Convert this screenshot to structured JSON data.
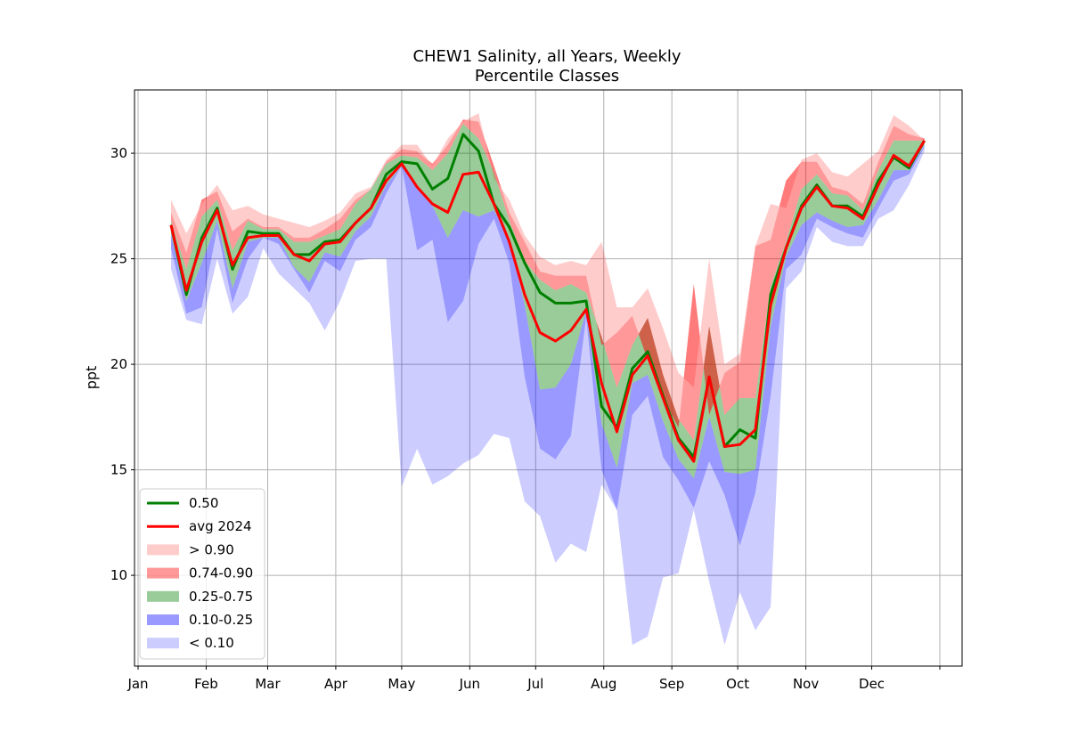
{
  "chart_data": {
    "type": "area",
    "title": "CHEW1 Salinity, all Years, Weekly",
    "subtitle": "Percentile Classes",
    "xlabel": "",
    "ylabel": "ppt",
    "xlim": [
      0,
      365
    ],
    "ylim": [
      5.7,
      33.0
    ],
    "yticks": [
      10,
      15,
      20,
      25,
      30
    ],
    "x_ticks": [
      {
        "label": "Jan",
        "day": 0
      },
      {
        "label": "Feb",
        "day": 31
      },
      {
        "label": "Mar",
        "day": 59
      },
      {
        "label": "Apr",
        "day": 90
      },
      {
        "label": "May",
        "day": 120
      },
      {
        "label": "Jun",
        "day": 151
      },
      {
        "label": "Jul",
        "day": 181
      },
      {
        "label": "Aug",
        "day": 212
      },
      {
        "label": "Sep",
        "day": 243
      },
      {
        "label": "Oct",
        "day": 273
      },
      {
        "label": "Nov",
        "day": 304
      },
      {
        "label": "Dec",
        "day": 334
      },
      {
        "label": "",
        "day": 365
      }
    ],
    "grid": true,
    "legend_position": "lower-left",
    "x": [
      15,
      22,
      29,
      36,
      43,
      50,
      57,
      64,
      71,
      78,
      85,
      92,
      99,
      106,
      113,
      120,
      127,
      134,
      141,
      148,
      155,
      162,
      169,
      176,
      183,
      190,
      197,
      204,
      211,
      218,
      225,
      232,
      239,
      246,
      253,
      260,
      267,
      274,
      281,
      288,
      295,
      302,
      309,
      316,
      323,
      330,
      337,
      344,
      351,
      358
    ],
    "percentiles": {
      "p00": [
        24.5,
        22.1,
        21.9,
        25.0,
        22.4,
        23.2,
        25.5,
        24.3,
        23.6,
        22.9,
        21.6,
        23.0,
        24.9,
        25.0,
        25.0,
        14.2,
        16.0,
        14.3,
        14.7,
        15.3,
        15.7,
        16.7,
        16.5,
        13.5,
        12.8,
        10.6,
        11.5,
        11.1,
        14.3,
        13.1,
        6.7,
        7.1,
        9.9,
        10.1,
        13.1,
        9.7,
        6.7,
        9.2,
        7.4,
        8.5,
        23.6,
        24.4,
        26.5,
        25.8,
        25.6,
        25.6,
        26.9,
        27.3,
        28.5,
        30.1
      ],
      "p10": [
        25.5,
        22.4,
        22.7,
        26.4,
        22.9,
        25.0,
        26.0,
        25.7,
        24.5,
        23.4,
        24.9,
        24.4,
        25.9,
        26.5,
        28.1,
        29.4,
        25.4,
        25.9,
        22.0,
        23.0,
        25.7,
        26.9,
        24.8,
        19.4,
        16.0,
        15.5,
        16.6,
        22.2,
        15.0,
        13.1,
        17.6,
        18.5,
        15.6,
        14.5,
        13.2,
        15.4,
        13.8,
        11.4,
        13.9,
        18.5,
        24.5,
        25.2,
        26.9,
        26.5,
        26.2,
        26.0,
        27.4,
        28.7,
        29.0,
        30.3
      ],
      "p25": [
        26.2,
        23.0,
        24.8,
        26.8,
        23.6,
        25.8,
        26.0,
        26.0,
        24.6,
        23.9,
        25.3,
        25.1,
        26.3,
        27.0,
        28.5,
        29.4,
        28.4,
        27.5,
        26.0,
        27.3,
        27.0,
        27.3,
        26.0,
        22.8,
        18.8,
        18.9,
        20.0,
        22.5,
        17.2,
        15.1,
        19.1,
        19.5,
        17.3,
        15.5,
        14.6,
        17.5,
        14.9,
        14.8,
        15.0,
        21.8,
        25.1,
        26.6,
        27.2,
        26.8,
        26.5,
        26.6,
        27.8,
        29.2,
        29.2,
        30.4
      ],
      "p75": [
        26.8,
        24.5,
        27.0,
        27.8,
        25.4,
        26.8,
        26.4,
        26.4,
        25.8,
        25.8,
        26.1,
        26.4,
        27.6,
        28.3,
        29.5,
        29.9,
        29.8,
        29.2,
        30.0,
        31.4,
        30.7,
        29.1,
        26.8,
        24.9,
        24.0,
        23.5,
        23.8,
        23.4,
        21.3,
        18.9,
        20.9,
        22.2,
        19.5,
        17.4,
        16.4,
        21.8,
        17.6,
        18.4,
        18.4,
        23.7,
        25.8,
        28.3,
        29.0,
        28.1,
        28.0,
        27.3,
        29.2,
        30.6,
        30.6,
        30.6
      ],
      "p90": [
        27.2,
        25.3,
        27.8,
        28.2,
        26.3,
        26.9,
        26.5,
        26.5,
        26.0,
        26.0,
        26.4,
        26.9,
        27.8,
        28.3,
        29.6,
        30.2,
        30.1,
        29.5,
        30.4,
        31.6,
        31.5,
        29.4,
        27.2,
        25.8,
        24.4,
        24.2,
        24.2,
        24.2,
        20.9,
        21.5,
        22.3,
        20.2,
        18.4,
        17.0,
        23.8,
        17.6,
        19.6,
        20.1,
        25.6,
        25.9,
        28.7,
        29.6,
        29.6,
        28.4,
        28.2,
        27.6,
        29.6,
        31.3,
        30.9,
        30.7
      ],
      "p100": [
        27.8,
        26.2,
        27.6,
        28.5,
        27.3,
        27.5,
        27.1,
        26.9,
        26.7,
        26.5,
        26.8,
        27.2,
        28.1,
        28.4,
        29.7,
        30.4,
        30.4,
        29.4,
        30.7,
        31.5,
        31.9,
        28.8,
        27.8,
        26.1,
        25.1,
        24.7,
        24.9,
        24.7,
        25.8,
        22.7,
        22.7,
        23.6,
        21.7,
        19.6,
        18.9,
        25.0,
        20.0,
        20.5,
        25.6,
        27.6,
        27.4,
        29.7,
        30.0,
        29.1,
        28.9,
        29.5,
        30.1,
        31.8,
        31.3,
        30.6
      ]
    },
    "series": [
      {
        "name": "0.50",
        "color": "#008000",
        "values": [
          26.6,
          23.3,
          26.0,
          27.4,
          24.5,
          26.3,
          26.2,
          26.2,
          25.2,
          25.2,
          25.8,
          25.9,
          26.7,
          27.4,
          29.0,
          29.6,
          29.5,
          28.3,
          28.8,
          30.9,
          30.1,
          27.6,
          26.5,
          24.8,
          23.4,
          22.9,
          22.9,
          23.0,
          18.0,
          17.0,
          19.8,
          20.6,
          18.5,
          16.5,
          15.6,
          19.4,
          16.1,
          16.9,
          16.5,
          23.3,
          25.5,
          27.5,
          28.5,
          27.5,
          27.5,
          27.0,
          28.7,
          29.8,
          29.3,
          30.6
        ]
      },
      {
        "name": "avg 2024",
        "color": "#ff0000",
        "values": [
          26.6,
          23.5,
          25.8,
          27.3,
          24.7,
          26.0,
          26.1,
          26.1,
          25.2,
          24.9,
          25.7,
          25.8,
          26.7,
          27.4,
          28.7,
          29.5,
          28.4,
          27.6,
          27.2,
          29.0,
          29.1,
          27.6,
          25.8,
          23.3,
          21.5,
          21.1,
          21.6,
          22.6,
          19.1,
          16.8,
          19.5,
          20.4,
          18.4,
          16.4,
          15.4,
          19.4,
          16.1,
          16.2,
          16.9,
          22.8,
          25.5,
          27.4,
          28.4,
          27.5,
          27.4,
          26.9,
          28.5,
          29.9,
          29.4,
          30.6
        ]
      }
    ],
    "bands": [
      {
        "name": "> 0.90",
        "color": "#ff0000",
        "alpha": 0.2,
        "lower": "p90",
        "upper": "p100"
      },
      {
        "name": "0.74-0.90",
        "color": "#ff0000",
        "alpha": 0.4,
        "lower": "p75",
        "upper": "p90"
      },
      {
        "name": "0.25-0.75",
        "color": "#008000",
        "alpha": 0.4,
        "lower": "p25",
        "upper": "p75"
      },
      {
        "name": "0.10-0.25",
        "color": "#0000ff",
        "alpha": 0.4,
        "lower": "p10",
        "upper": "p25"
      },
      {
        "name": "< 0.10",
        "color": "#0000ff",
        "alpha": 0.2,
        "lower": "p00",
        "upper": "p10"
      }
    ]
  }
}
